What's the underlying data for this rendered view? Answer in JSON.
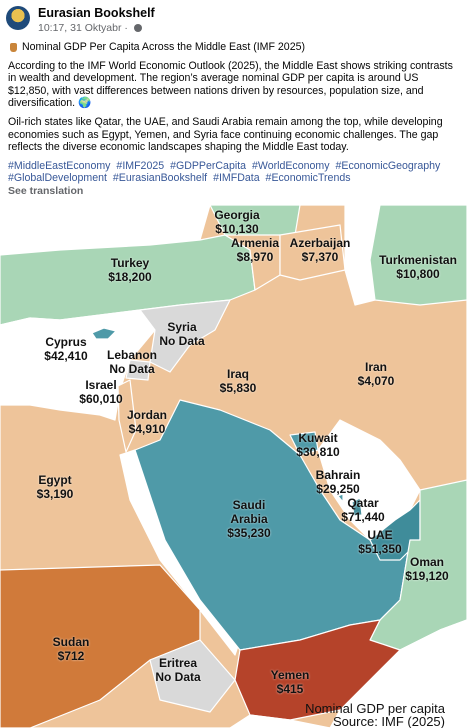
{
  "post": {
    "author": "Eurasian Bookshelf",
    "time": "10:17, 31 Oktyabr",
    "title": "Nominal GDP Per Capita Across the Middle East (IMF 2025)",
    "paragraphs": [
      "According to the IMF World Economic Outlook (2025), the Middle East shows striking contrasts in wealth and development. The region’s average nominal GDP per capita is around US $12,850, with vast differences between nations driven by resources, population size, and diversification. 🌍",
      "Oil-rich states like Qatar, the UAE, and Saudi Arabia remain among the top, while developing economies such as Egypt, Yemen, and Syria face continuing economic challenges. The gap reflects the diverse economic landscapes shaping the Middle East today."
    ],
    "hashtags": [
      "#MiddleEastEconomy",
      "#IMF2025",
      "#GDPPerCapita",
      "#WorldEconomy",
      "#EconomicGeography",
      "#GlobalDevelopment",
      "#EurasianBookshelf",
      "#IMFData",
      "#EconomicTrends"
    ],
    "see_translation": "See translation"
  },
  "map": {
    "countries": [
      {
        "name": "Georgia",
        "value": "$10,130"
      },
      {
        "name": "Turkey",
        "value": "$18,200"
      },
      {
        "name": "Armenia",
        "value": "$8,970"
      },
      {
        "name": "Azerbaijan",
        "value": "$7,370"
      },
      {
        "name": "Turkmenistan",
        "value": "$10,800"
      },
      {
        "name": "Syria",
        "value": "No Data"
      },
      {
        "name": "Cyprus",
        "value": "$42,410"
      },
      {
        "name": "Lebanon",
        "value": "No Data"
      },
      {
        "name": "Iran",
        "value": "$4,070"
      },
      {
        "name": "Iraq",
        "value": "$5,830"
      },
      {
        "name": "Israel",
        "value": "$60,010"
      },
      {
        "name": "Jordan",
        "value": "$4,910"
      },
      {
        "name": "Kuwait",
        "value": "$30,810"
      },
      {
        "name": "Egypt",
        "value": "$3,190"
      },
      {
        "name": "Bahrain",
        "value": "$29,250"
      },
      {
        "name": "Qatar",
        "value": "$71,440"
      },
      {
        "name": "Saudi Arabia",
        "value": "$35,230"
      },
      {
        "name": "UAE",
        "value": "$51,350"
      },
      {
        "name": "Oman",
        "value": "$19,120"
      },
      {
        "name": "Sudan",
        "value": "$712"
      },
      {
        "name": "Eritrea",
        "value": "No Data"
      },
      {
        "name": "Yemen",
        "value": "$415"
      }
    ],
    "legend_title": "Nominal GDP per capita",
    "source": "Source: IMF (2025)"
  }
}
